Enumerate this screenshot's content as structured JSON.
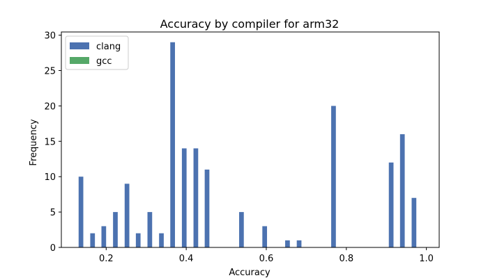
{
  "chart_data": {
    "type": "bar",
    "title": "Accuracy by compiler for arm32",
    "xlabel": "Accuracy",
    "ylabel": "Frequency",
    "xlim": [
      0.088,
      1.032
    ],
    "ylim": [
      0,
      30.45
    ],
    "xticks": [
      0.2,
      0.4,
      0.6,
      0.8,
      1.0
    ],
    "xtick_labels": [
      "0.2",
      "0.4",
      "0.6",
      "0.8",
      "1.0"
    ],
    "yticks": [
      0,
      5,
      10,
      15,
      20,
      25,
      30
    ],
    "ytick_labels": [
      "0",
      "5",
      "10",
      "15",
      "20",
      "25",
      "30"
    ],
    "grid": false,
    "legend_position": "top-left",
    "bar_width": 0.0117,
    "series": [
      {
        "name": "clang",
        "color": "#4c72b0",
        "x": [
          0.137,
          0.166,
          0.194,
          0.223,
          0.252,
          0.28,
          0.309,
          0.338,
          0.366,
          0.395,
          0.424,
          0.452,
          0.538,
          0.596,
          0.653,
          0.682,
          0.768,
          0.912,
          0.94,
          0.969
        ],
        "values": [
          10,
          2,
          3,
          5,
          9,
          2,
          5,
          2,
          29,
          14,
          14,
          11,
          5,
          3,
          1,
          1,
          20,
          12,
          16,
          7
        ]
      },
      {
        "name": "gcc",
        "color": "#55a868",
        "x": [],
        "values": []
      }
    ]
  }
}
